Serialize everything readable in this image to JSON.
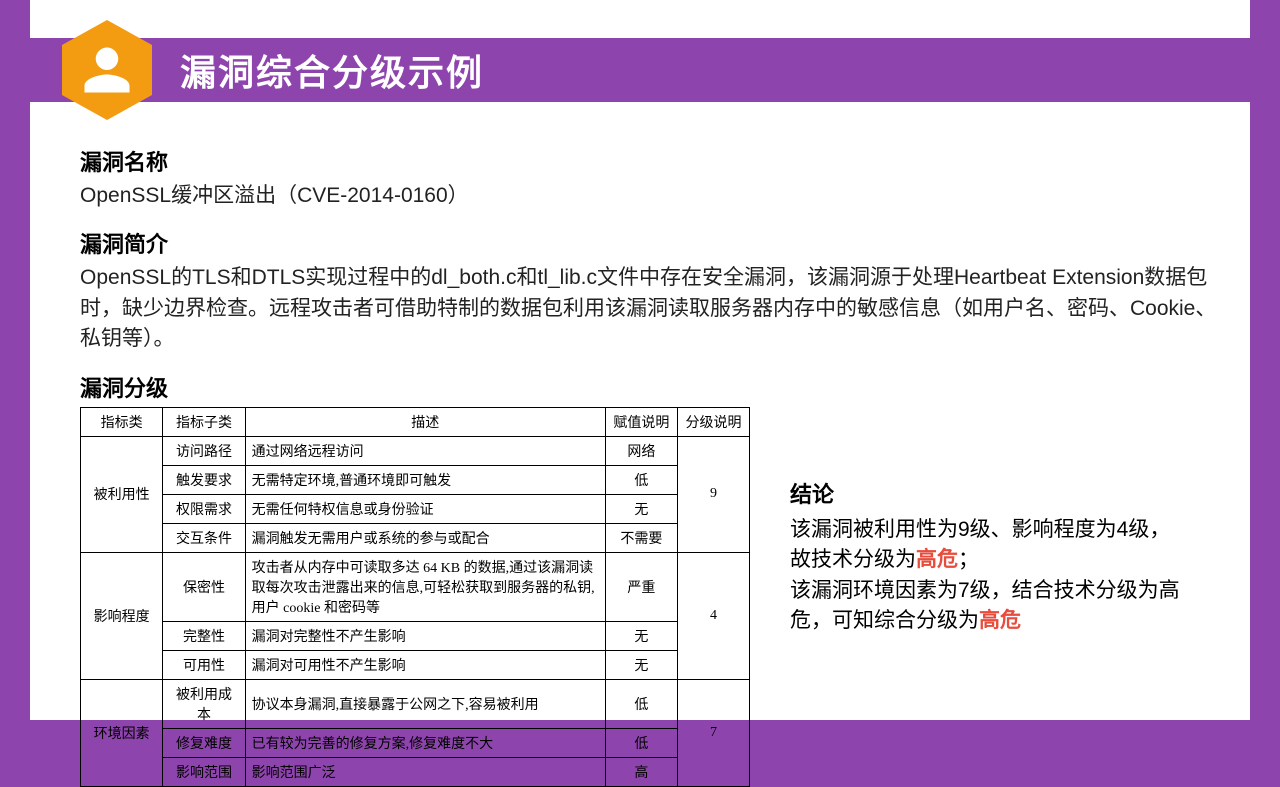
{
  "header": {
    "title": "漏洞综合分级示例"
  },
  "vuln_name": {
    "label": "漏洞名称",
    "text": "OpenSSL缓冲区溢出（CVE-2014-0160）"
  },
  "vuln_intro": {
    "label": "漏洞简介",
    "text": "OpenSSL的TLS和DTLS实现过程中的dl_both.c和tl_lib.c文件中存在安全漏洞，该漏洞源于处理Heartbeat Extension数据包时，缺少边界检查。远程攻击者可借助特制的数据包利用该漏洞读取服务器内存中的敏感信息（如用户名、密码、Cookie、私钥等）。"
  },
  "grading": {
    "label": "漏洞分级",
    "columns": [
      "指标类",
      "指标子类",
      "描述",
      "赋值说明",
      "分级说明"
    ],
    "groups": [
      {
        "category": "被利用性",
        "level": "9",
        "rows": [
          {
            "sub": "访问路径",
            "desc": "通过网络远程访问",
            "value": "网络"
          },
          {
            "sub": "触发要求",
            "desc": "无需特定环境,普通环境即可触发",
            "value": "低"
          },
          {
            "sub": "权限需求",
            "desc": "无需任何特权信息或身份验证",
            "value": "无"
          },
          {
            "sub": "交互条件",
            "desc": "漏洞触发无需用户或系统的参与或配合",
            "value": "不需要"
          }
        ]
      },
      {
        "category": "影响程度",
        "level": "4",
        "rows": [
          {
            "sub": "保密性",
            "desc": "攻击者从内存中可读取多达 64 KB 的数据,通过该漏洞读取每次攻击泄露出来的信息,可轻松获取到服务器的私钥,用户 cookie 和密码等",
            "value": "严重"
          },
          {
            "sub": "完整性",
            "desc": "漏洞对完整性不产生影响",
            "value": "无"
          },
          {
            "sub": "可用性",
            "desc": "漏洞对可用性不产生影响",
            "value": "无"
          }
        ]
      },
      {
        "category": "环境因素",
        "level": "7",
        "rows": [
          {
            "sub": "被利用成本",
            "desc": "协议本身漏洞,直接暴露于公网之下,容易被利用",
            "value": "低"
          },
          {
            "sub": "修复难度",
            "desc": "已有较为完善的修复方案,修复难度不大",
            "value": "低"
          },
          {
            "sub": "影响范围",
            "desc": "影响范围广泛",
            "value": "高"
          }
        ]
      }
    ]
  },
  "conclusion": {
    "label": "结论",
    "line1_a": "该漏洞被利用性为9级、影响程度为4级，故技术分级为",
    "line1_b": "高危",
    "line1_c": "；",
    "line2_a": "该漏洞环境因素为7级，结合技术分级为高危，可知综合分级为",
    "line2_b": "高危"
  },
  "colors": {
    "brand": "#8e44ad",
    "accent": "#f39c12",
    "danger": "#e74c3c"
  }
}
